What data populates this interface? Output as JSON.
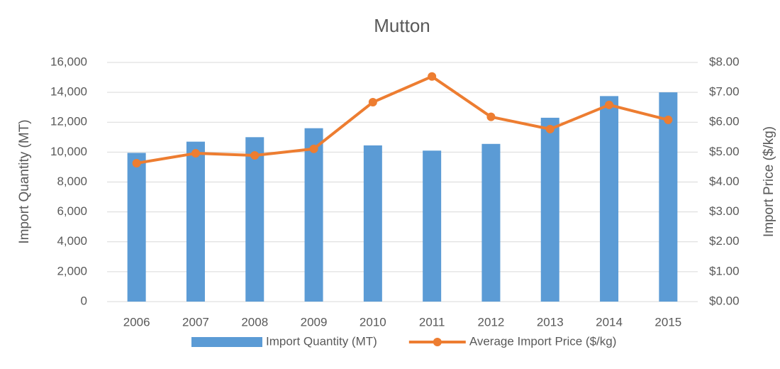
{
  "chart_data": {
    "type": "bar+line",
    "title": "Mutton",
    "categories": [
      "2006",
      "2007",
      "2008",
      "2009",
      "2010",
      "2011",
      "2012",
      "2013",
      "2014",
      "2015"
    ],
    "series": [
      {
        "name": "Import Quantity (MT)",
        "type": "bar",
        "color": "#5b9bd5",
        "axis": "y",
        "values": [
          9950,
          10700,
          11000,
          11600,
          10450,
          10100,
          10550,
          12300,
          13750,
          14000
        ]
      },
      {
        "name": "Average Import Price ($/kg)",
        "type": "line",
        "color": "#ed7d31",
        "axis": "y2",
        "values": [
          4.63,
          4.96,
          4.89,
          5.11,
          6.67,
          7.53,
          6.18,
          5.77,
          6.58,
          6.08
        ]
      }
    ],
    "ylabel": "Import Quantity (MT)",
    "y2label": "Import Price ($/kg)",
    "ylim": [
      0,
      16000
    ],
    "yticks": [
      0,
      {
        "value": 2000,
        "label": "2,000"
      },
      {
        "value": 4000,
        "label": "4,000"
      },
      {
        "value": 6000,
        "label": "6,000"
      },
      {
        "value": 8000,
        "label": "8,000"
      },
      {
        "value": 10000,
        "label": "10,000"
      },
      {
        "value": 12000,
        "label": "12,000"
      },
      {
        "value": 14000,
        "label": "14,000"
      },
      {
        "value": 16000,
        "label": "16,000"
      }
    ],
    "y2lim": [
      0,
      8
    ],
    "y2ticks": [
      {
        "value": 0,
        "label": "$0.00"
      },
      {
        "value": 1,
        "label": "$1.00"
      },
      {
        "value": 2,
        "label": "$2.00"
      },
      {
        "value": 3,
        "label": "$3.00"
      },
      {
        "value": 4,
        "label": "$4.00"
      },
      {
        "value": 5,
        "label": "$5.00"
      },
      {
        "value": 6,
        "label": "$6.00"
      },
      {
        "value": 7,
        "label": "$7.00"
      },
      {
        "value": 8,
        "label": "$8.00"
      }
    ],
    "grid": true,
    "legend": "bottom"
  }
}
